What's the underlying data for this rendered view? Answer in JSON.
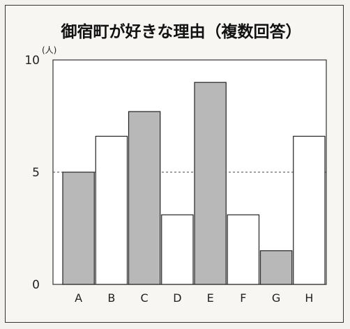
{
  "chart_data": {
    "type": "bar",
    "title": "御宿町が好きな理由（複数回答）",
    "y_unit": "(人)",
    "categories": [
      "A",
      "B",
      "C",
      "D",
      "E",
      "F",
      "G",
      "H"
    ],
    "values": [
      5,
      6.6,
      7.7,
      3.1,
      9,
      3.1,
      1.5,
      6.6
    ],
    "bar_colors": [
      "#b8b8b8",
      "#ffffff",
      "#b8b8b8",
      "#ffffff",
      "#b8b8b8",
      "#ffffff",
      "#b8b8b8",
      "#ffffff"
    ],
    "ylim": [
      0,
      10
    ],
    "yticks": [
      "0",
      "5",
      "10"
    ],
    "reference_line": 5,
    "grid": false,
    "legend": "none"
  }
}
